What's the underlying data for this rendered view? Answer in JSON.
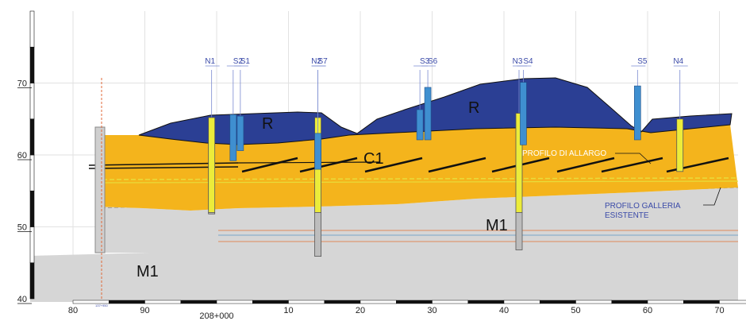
{
  "axis": {
    "chainage_ticks": [
      {
        "label": "80",
        "m": -20
      },
      {
        "label": "90",
        "m": -10
      },
      {
        "label": "10",
        "m": 10
      },
      {
        "label": "20",
        "m": 20
      },
      {
        "label": "30",
        "m": 30
      },
      {
        "label": "40",
        "m": 40
      },
      {
        "label": "50",
        "m": 50
      },
      {
        "label": "60",
        "m": 60
      },
      {
        "label": "70",
        "m": 70
      }
    ],
    "origin_label": "208+000",
    "origin_m": 0,
    "elevation_ticks": [
      {
        "label": "70",
        "z": 70
      },
      {
        "label": "60",
        "z": 60
      },
      {
        "label": "50",
        "z": 50
      },
      {
        "label": "40",
        "z": 40
      }
    ]
  },
  "boreholes": [
    {
      "label": "N1",
      "m": -0.7,
      "top": 65.2,
      "bottom": 51.8,
      "type": "N"
    },
    {
      "label": "S2",
      "m": 2.3,
      "top": 65.6,
      "bottom": 59.2,
      "type": "S"
    },
    {
      "label": "S1",
      "m": 3.3,
      "top": 65.4,
      "bottom": 60.6,
      "type": "S"
    },
    {
      "label": "N2",
      "m": 14.1,
      "top": 65.2,
      "bottom": 45.9,
      "type": "N"
    },
    {
      "label": "S7",
      "m": 14.1,
      "top": 63.0,
      "bottom": 58.0,
      "type": "S"
    },
    {
      "label": "S3",
      "m": 28.3,
      "top": 66.3,
      "bottom": 62.1,
      "type": "S"
    },
    {
      "label": "S6",
      "m": 29.4,
      "top": 69.4,
      "bottom": 62.1,
      "type": "S"
    },
    {
      "label": "N3",
      "m": 42.1,
      "top": 65.8,
      "bottom": 46.8,
      "type": "N"
    },
    {
      "label": "S4",
      "m": 42.7,
      "top": 70.1,
      "bottom": 61.4,
      "type": "S"
    },
    {
      "label": "S5",
      "m": 58.6,
      "top": 69.6,
      "bottom": 62.1,
      "type": "S"
    },
    {
      "label": "N4",
      "m": 64.5,
      "top": 65.0,
      "bottom": 57.7,
      "type": "N"
    }
  ],
  "units": {
    "R": "R",
    "C1": "C1",
    "M1": "M1"
  },
  "annotations": {
    "profilo_allargo": "PROFILO DI ALLARGO",
    "profilo_galleria_line1": "PROFILO GALLERIA",
    "profilo_galleria_line2": "ESISTENTE",
    "small_tag": "137+950"
  },
  "colors": {
    "R": "#2b3f94",
    "C1": "#f4b41c",
    "M1": "#d6d6d6",
    "borehole_S": "#3f8fd0",
    "borehole_N_fill": "#ecec3a",
    "label_blue": "#3a4aa8",
    "axis_black": "#111111"
  }
}
